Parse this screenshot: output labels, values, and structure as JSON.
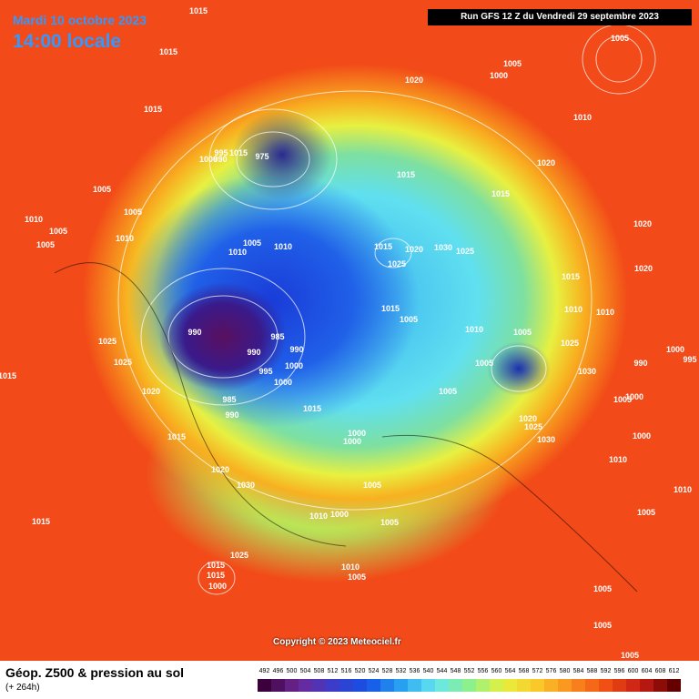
{
  "header": {
    "date": "Mardi 10 octobre 2023",
    "time": "14:00 locale",
    "run": "Run GFS 12 Z du Vendredi 29 septembre 2023"
  },
  "map": {
    "isobar_labels": [
      1015,
      1015,
      1015,
      1005,
      1010,
      1005,
      1005,
      1005,
      1010,
      1020,
      1005,
      1000,
      1005,
      1010,
      1020,
      1015,
      1015,
      1020,
      1020,
      1015,
      1010,
      1010,
      995,
      1015,
      1000,
      990,
      975,
      1010,
      1005,
      1010,
      1015,
      1020,
      1030,
      1025,
      1025,
      1015,
      1005,
      1010,
      1005,
      1025,
      1005,
      1030,
      1000,
      995,
      990,
      1005,
      1000,
      990,
      985,
      990,
      990,
      1000,
      995,
      1000,
      985,
      990,
      1020,
      1025,
      1025,
      1015,
      1015,
      1005,
      1020,
      1025,
      1030,
      1000,
      1000,
      1000,
      1010,
      1010,
      1015,
      1020,
      1030,
      1005,
      1005,
      1010,
      1000,
      1005,
      1015,
      1025,
      1015,
      1015,
      1000,
      1010,
      1005,
      1005,
      1005,
      1005
    ]
  },
  "copyright": "Copyright © 2023 Meteociel.fr",
  "legend": {
    "title": "Géop. Z500 & pression au sol",
    "lead": "(+ 264h)",
    "scale": [
      492,
      496,
      500,
      504,
      508,
      512,
      516,
      520,
      524,
      528,
      532,
      536,
      540,
      544,
      548,
      552,
      556,
      560,
      564,
      568,
      572,
      576,
      580,
      584,
      588,
      592,
      596,
      600,
      604,
      608,
      612
    ]
  }
}
